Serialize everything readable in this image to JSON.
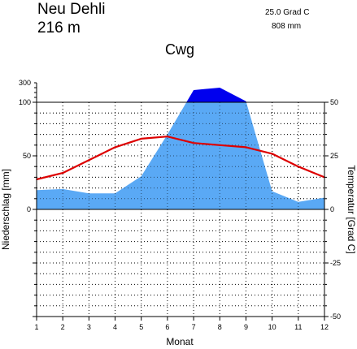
{
  "header": {
    "station": "Neu Dehli",
    "elevation": "216  m",
    "mean_temp": "25.0 Grad C",
    "annual_precip": "808 mm",
    "climate_class": "Cwg"
  },
  "chart_data": {
    "type": "area",
    "title": "Cwg",
    "xlabel": "Monat",
    "ylabel_left": "Niederschlag [mm]",
    "ylabel_right": "Temperatur [Grad C]",
    "x": [
      1,
      2,
      3,
      4,
      5,
      6,
      7,
      8,
      9,
      10,
      11,
      12
    ],
    "x_ticks": [
      "1",
      "2",
      "3",
      "4",
      "5",
      "6",
      "7",
      "8",
      "9",
      "10",
      "11",
      "12"
    ],
    "y_left_ticks": [
      "300",
      "100",
      "50",
      "0"
    ],
    "y_right_ticks": [
      "50",
      "25",
      "0",
      "-25",
      "-50"
    ],
    "precip_scale": "linear 0-100 mm, compressed 100-300 mm",
    "temp_range": [
      -50,
      50
    ],
    "grid": true,
    "series": [
      {
        "name": "Niederschlag",
        "unit": "mm",
        "color": "#5aa9f5",
        "excess_color": "#0000ee",
        "values": [
          18,
          19,
          15,
          15,
          31,
          70,
          225,
          250,
          110,
          17,
          7,
          11
        ]
      },
      {
        "name": "Temperatur",
        "unit": "Grad C",
        "color": "#dd0000",
        "values": [
          14,
          17,
          23,
          29,
          33,
          34,
          31,
          30,
          29,
          26,
          20,
          15
        ]
      }
    ]
  }
}
